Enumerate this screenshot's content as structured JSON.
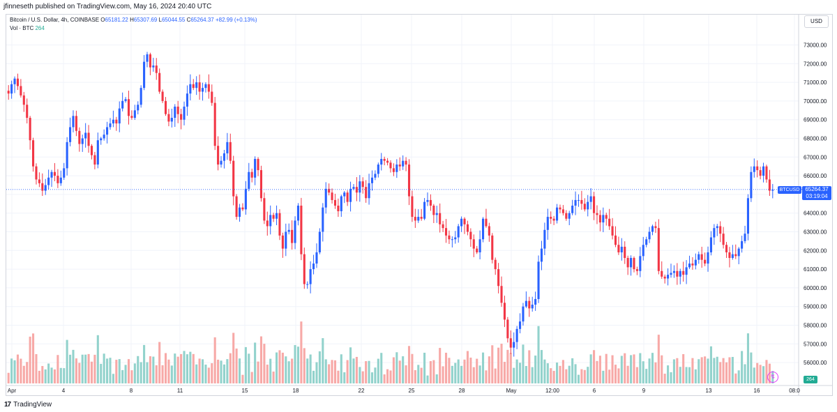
{
  "publish_line": "jfinneseth published on TradingView.com, May 16, 2024 20:40 UTC",
  "legend": {
    "title": "Bitcoin / U.S. Dollar, 4h, COINBASE",
    "o_label": "O",
    "o_value": "65181.22",
    "h_label": "H",
    "h_value": "65307.69",
    "l_label": "L",
    "l_value": "65044.55",
    "c_label": "C",
    "c_value": "65264.37",
    "change": "+82.99 (+0.13%)",
    "vol_label": "Vol · BTC",
    "vol_value": "264"
  },
  "currency_button": "USD",
  "price_tag": {
    "symbol": "BTCUSD",
    "price": "65264.37",
    "countdown": "03:19:04"
  },
  "volume_tag": "264",
  "footer": {
    "logo_mark": "17",
    "logo_text": "TradingView"
  },
  "colors": {
    "up": "#2962ff",
    "down": "#f23645",
    "vol_up": "#92d2cc",
    "vol_down": "#f7a9a7",
    "grid": "#f0f3fa"
  },
  "chart_data": {
    "type": "candlestick",
    "title": "Bitcoin / U.S. Dollar, 4h, COINBASE",
    "ylim": [
      55500,
      73800
    ],
    "y_ticks": [
      "73000.00",
      "72000.00",
      "71000.00",
      "70000.00",
      "69000.00",
      "68000.00",
      "67000.00",
      "66000.00",
      "65000.00",
      "64000.00",
      "63000.00",
      "62000.00",
      "61000.00",
      "60000.00",
      "59000.00",
      "58000.00",
      "57000.00",
      "56000.00"
    ],
    "x_ticks": [
      "Apr",
      "4",
      "8",
      "11",
      "15",
      "18",
      "22",
      "25",
      "28",
      "May",
      "12:00",
      "6",
      "9",
      "13",
      "16",
      "08:0"
    ],
    "last_price": 65264.37,
    "closes": [
      70400,
      70900,
      71200,
      70800,
      70300,
      69800,
      69100,
      67900,
      66500,
      65800,
      65600,
      65200,
      65500,
      65900,
      66200,
      66000,
      65600,
      65900,
      66400,
      67800,
      68600,
      69200,
      68400,
      67700,
      68000,
      68300,
      67600,
      67100,
      66600,
      67900,
      68000,
      68200,
      68600,
      68800,
      69000,
      68800,
      69600,
      70000,
      70100,
      69200,
      69100,
      69500,
      69800,
      70700,
      72100,
      72500,
      71800,
      71900,
      71500,
      70500,
      70000,
      69300,
      68900,
      69100,
      69700,
      69300,
      69000,
      69700,
      70400,
      70900,
      70700,
      71000,
      70500,
      70700,
      70900,
      70500,
      69900,
      67600,
      66600,
      66800,
      67200,
      67800,
      66800,
      64900,
      63800,
      64300,
      64200,
      65300,
      66200,
      65900,
      66900,
      66300,
      64800,
      63600,
      63300,
      63900,
      63700,
      64000,
      62800,
      62100,
      63000,
      63100,
      62400,
      63600,
      64400,
      61800,
      60200,
      60200,
      61000,
      61300,
      61900,
      63000,
      64300,
      65300,
      65100,
      64700,
      64400,
      64100,
      64900,
      65100,
      64600,
      65300,
      65400,
      65100,
      65700,
      65400,
      64800,
      65600,
      65900,
      66100,
      66600,
      66900,
      66800,
      66700,
      66400,
      66200,
      66600,
      66500,
      66800,
      66600,
      64900,
      63800,
      63600,
      63800,
      63700,
      64600,
      64700,
      64400,
      63900,
      64000,
      63400,
      63200,
      62800,
      62600,
      62600,
      62700,
      63300,
      63700,
      63400,
      63000,
      62600,
      62100,
      61900,
      62600,
      63700,
      63300,
      62800,
      61500,
      61000,
      60100,
      59200,
      58300,
      57300,
      56800,
      57100,
      57800,
      58200,
      59000,
      59300,
      58900,
      59100,
      59400,
      61400,
      62100,
      63100,
      63800,
      63700,
      63600,
      64300,
      64200,
      64000,
      63700,
      64000,
      64400,
      64700,
      64700,
      64500,
      64200,
      64600,
      64900,
      64000,
      63900,
      63500,
      63900,
      63700,
      63300,
      62800,
      62300,
      61900,
      62200,
      61600,
      61100,
      61600,
      61000,
      60900,
      61700,
      62300,
      62600,
      63000,
      63300,
      63200,
      60900,
      60600,
      60500,
      60700,
      60800,
      60900,
      60600,
      60900,
      60700,
      61100,
      61300,
      61200,
      61500,
      61800,
      61500,
      61300,
      61900,
      62700,
      63200,
      63300,
      62900,
      62300,
      61900,
      61600,
      61800,
      61700,
      62100,
      62500,
      62900,
      64800,
      66200,
      66500,
      66300,
      66000,
      66500,
      65800,
      65200,
      65264.37
    ]
  }
}
